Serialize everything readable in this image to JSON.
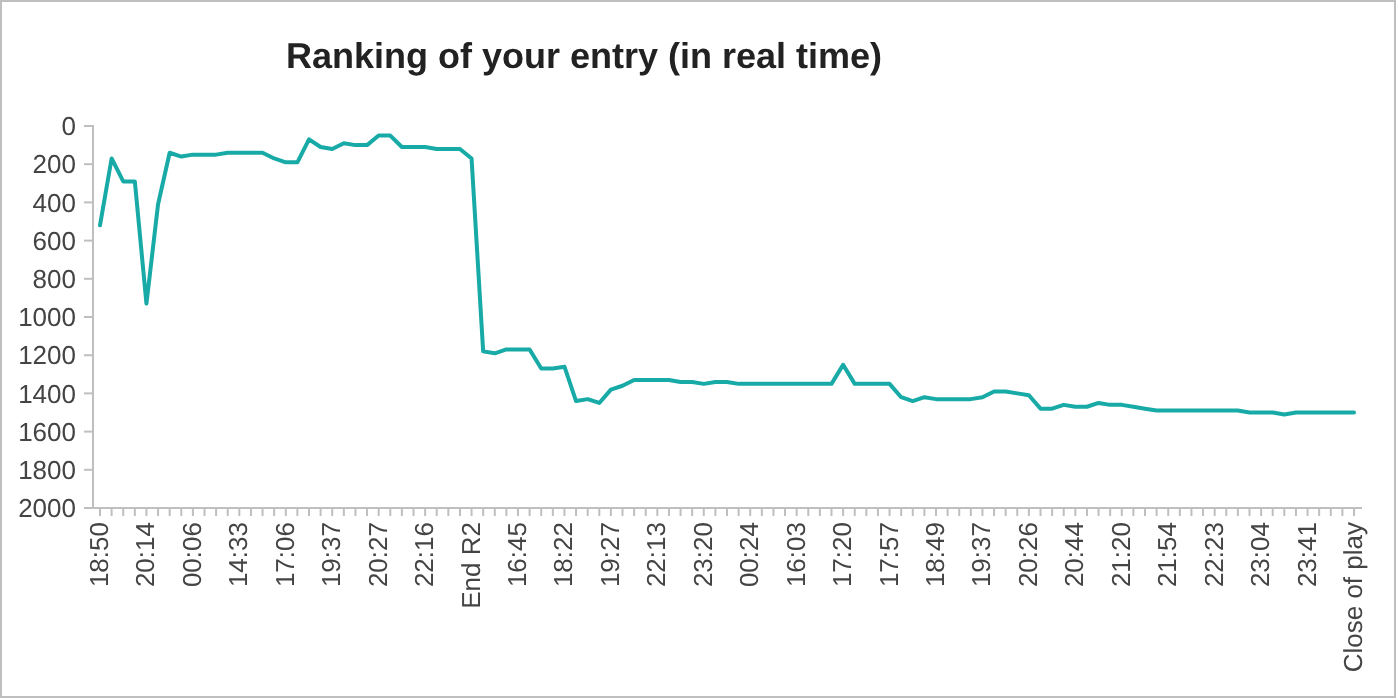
{
  "chart_data": {
    "type": "line",
    "title": "Ranking of your entry (in real time)",
    "categories": [
      "18:50",
      null,
      null,
      null,
      "20:14",
      null,
      null,
      null,
      "00:06",
      null,
      null,
      null,
      "14:33",
      null,
      null,
      null,
      "17:06",
      null,
      null,
      null,
      "19:37",
      null,
      null,
      null,
      "20:27",
      null,
      null,
      null,
      "22:16",
      null,
      null,
      null,
      "End R2",
      null,
      null,
      null,
      "16:45",
      null,
      null,
      null,
      "18:22",
      null,
      null,
      null,
      "19:27",
      null,
      null,
      null,
      "22:13",
      null,
      null,
      null,
      "23:20",
      null,
      null,
      null,
      "00:24",
      null,
      null,
      null,
      "16:03",
      null,
      null,
      null,
      "17:20",
      null,
      null,
      null,
      "17:57",
      null,
      null,
      null,
      "18:49",
      null,
      null,
      null,
      "19:37",
      null,
      null,
      null,
      "20:26",
      null,
      null,
      null,
      "20:44",
      null,
      null,
      null,
      "21:20",
      null,
      null,
      null,
      "21:54",
      null,
      null,
      null,
      "22:23",
      null,
      null,
      null,
      "23:04",
      null,
      null,
      null,
      "23:41",
      null,
      null,
      null,
      "Close of play"
    ],
    "series": [
      {
        "color": "#17aaa6",
        "values": [
          520,
          170,
          290,
          290,
          930,
          410,
          140,
          160,
          150,
          150,
          150,
          140,
          140,
          140,
          140,
          170,
          190,
          190,
          70,
          110,
          120,
          90,
          100,
          100,
          50,
          50,
          110,
          110,
          110,
          120,
          120,
          120,
          170,
          1180,
          1190,
          1170,
          1170,
          1170,
          1270,
          1270,
          1260,
          1440,
          1430,
          1450,
          1380,
          1360,
          1330,
          1330,
          1330,
          1330,
          1340,
          1340,
          1350,
          1340,
          1340,
          1350,
          1350,
          1350,
          1350,
          1350,
          1350,
          1350,
          1350,
          1350,
          1250,
          1350,
          1350,
          1350,
          1350,
          1420,
          1440,
          1420,
          1430,
          1430,
          1430,
          1430,
          1420,
          1390,
          1390,
          1400,
          1410,
          1480,
          1480,
          1460,
          1470,
          1470,
          1450,
          1460,
          1460,
          1470,
          1480,
          1490,
          1490,
          1490,
          1490,
          1490,
          1490,
          1490,
          1490,
          1500,
          1500,
          1500,
          1510,
          1500,
          1500,
          1500,
          1500,
          1500,
          1500
        ]
      }
    ],
    "ylim": [
      2000,
      0
    ],
    "yticks": [
      0,
      200,
      400,
      600,
      800,
      1000,
      1200,
      1400,
      1600,
      1800,
      2000
    ],
    "marker": "none",
    "line_style": "solid"
  }
}
